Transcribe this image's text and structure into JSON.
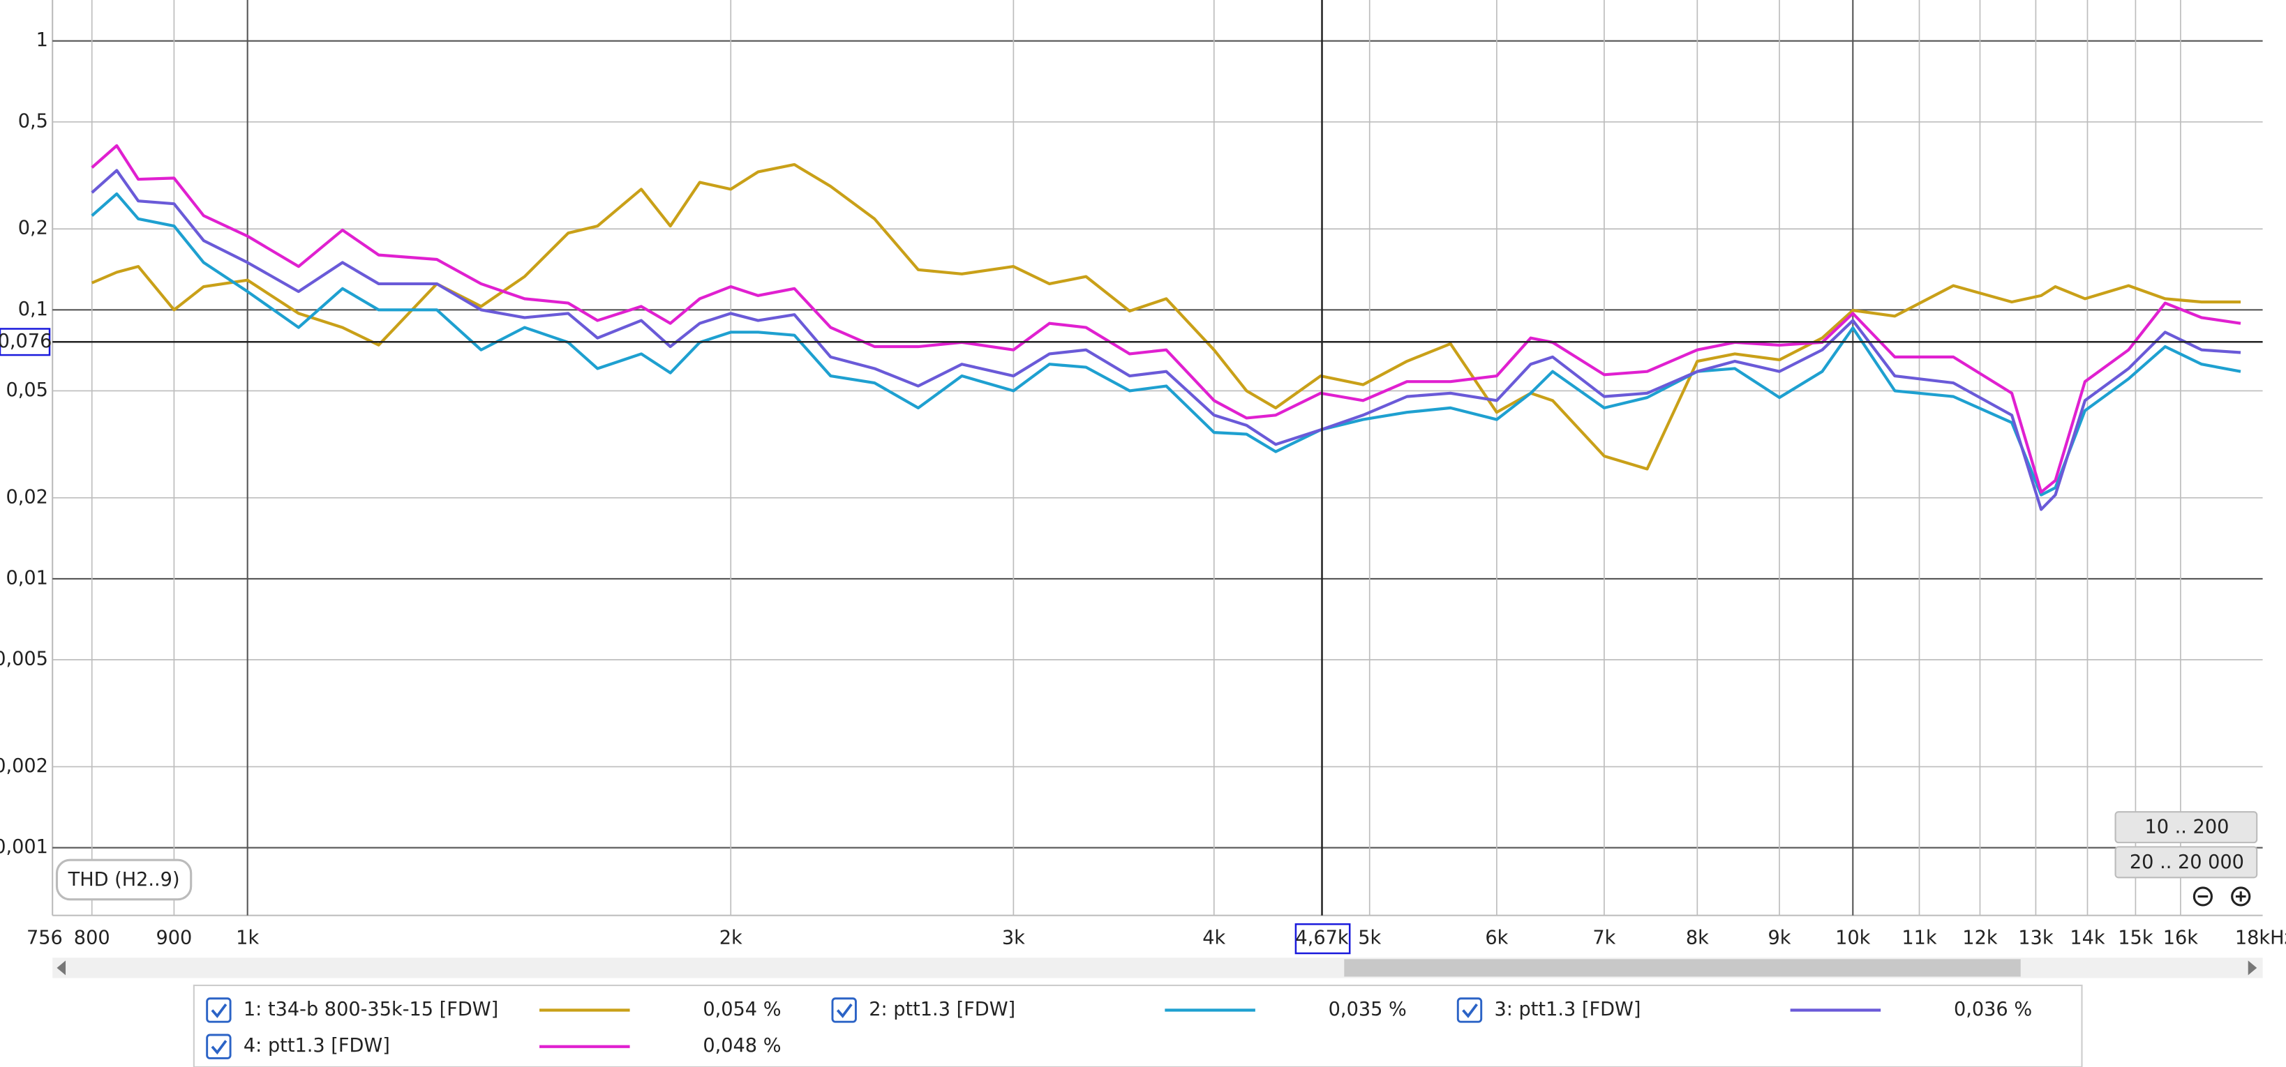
{
  "chart_data": {
    "type": "line",
    "plot_label": "THD (H2..9)",
    "log_x": true,
    "log_y": true,
    "grid": true,
    "xlim": [
      756,
      18000
    ],
    "ylim": [
      0.00056,
      1.42
    ],
    "xticks": [
      756,
      800,
      900,
      {
        "value": 1000,
        "label": "1k"
      },
      {
        "value": 2000,
        "label": "2k"
      },
      {
        "value": 3000,
        "label": "3k"
      },
      {
        "value": 4000,
        "label": "4k"
      },
      {
        "value": 5000,
        "label": "5k"
      },
      {
        "value": 6000,
        "label": "6k"
      },
      {
        "value": 7000,
        "label": "7k"
      },
      {
        "value": 8000,
        "label": "8k"
      },
      {
        "value": 9000,
        "label": "9k"
      },
      {
        "value": 10000,
        "label": "10k"
      },
      {
        "value": 11000,
        "label": "11k"
      },
      {
        "value": 12000,
        "label": "12k"
      },
      {
        "value": 13000,
        "label": "13k"
      },
      {
        "value": 14000,
        "label": "14k"
      },
      {
        "value": 15000,
        "label": "15k"
      },
      {
        "value": 16000,
        "label": "16k"
      },
      {
        "value": 18000,
        "label": "18kHz"
      }
    ],
    "yticks": [
      1,
      {
        "value": 0.5,
        "label": "0,5"
      },
      {
        "value": 0.2,
        "label": "0,2"
      },
      {
        "value": 0.1,
        "label": "0,1"
      },
      {
        "value": 0.05,
        "label": "0,05"
      },
      {
        "value": 0.02,
        "label": "0,02"
      },
      {
        "value": 0.01,
        "label": "0,01"
      },
      {
        "value": 0.005,
        "label": "0,005"
      },
      {
        "value": 0.002,
        "label": "0,002"
      },
      {
        "value": 0.001,
        "label": "0,001"
      }
    ],
    "cursor": {
      "x": {
        "value": 4670,
        "label": "4,67k"
      },
      "y": {
        "value": 0.076,
        "label": "0,076"
      }
    },
    "x": [
      800,
      829,
      855,
      900,
      939,
      1000,
      1076,
      1146,
      1207,
      1312,
      1398,
      1488,
      1584,
      1652,
      1759,
      1834,
      1913,
      2000,
      2080,
      2191,
      2308,
      2458,
      2617,
      2786,
      3000,
      3159,
      3329,
      3544,
      3735,
      4000,
      4191,
      4370,
      4661,
      4953,
      5275,
      5615,
      6000,
      6300,
      6501,
      7000,
      7445,
      8000,
      8443,
      9000,
      9570,
      10000,
      10620,
      11550,
      12560,
      13100,
      13370,
      13950,
      14850,
      15650,
      16490,
      17440
    ],
    "series": [
      {
        "name": "1: t34-b 800-35k-15 [FDW]",
        "color": "#c9a018",
        "cursor_label": "0,054 %",
        "values": [
          0.126,
          0.138,
          0.145,
          0.1,
          0.122,
          0.129,
          0.097,
          0.086,
          0.074,
          0.125,
          0.103,
          0.133,
          0.193,
          0.205,
          0.281,
          0.205,
          0.298,
          0.281,
          0.326,
          0.347,
          0.288,
          0.218,
          0.141,
          0.136,
          0.145,
          0.125,
          0.133,
          0.099,
          0.11,
          0.071,
          0.05,
          0.0432,
          0.0568,
          0.0527,
          0.0644,
          0.0748,
          0.0416,
          0.049,
          0.046,
          0.0286,
          0.0256,
          0.0644,
          0.0686,
          0.0652,
          0.0786,
          0.0996,
          0.0948,
          0.123,
          0.107,
          0.113,
          0.122,
          0.11,
          0.123,
          0.11,
          0.107,
          0.107
        ]
      },
      {
        "name": "2: ptt1.3 [FDW]",
        "color": "#1ea0d0",
        "cursor_label": "0,035 %",
        "values": [
          0.224,
          0.27,
          0.218,
          0.205,
          0.15,
          0.117,
          0.086,
          0.12,
          0.1,
          0.1,
          0.071,
          0.086,
          0.0757,
          0.0605,
          0.0686,
          0.0583,
          0.0757,
          0.0826,
          0.0826,
          0.0805,
          0.0568,
          0.0535,
          0.0432,
          0.0568,
          0.05,
          0.0628,
          0.0612,
          0.05,
          0.0521,
          0.035,
          0.0345,
          0.0297,
          0.0358,
          0.0391,
          0.0416,
          0.0432,
          0.0391,
          0.049,
          0.059,
          0.0432,
          0.0472,
          0.059,
          0.0605,
          0.0472,
          0.059,
          0.0857,
          0.05,
          0.0476,
          0.0381,
          0.0205,
          0.0218,
          0.0422,
          0.0554,
          0.073,
          0.0628,
          0.059
        ]
      },
      {
        "name": "3: ptt1.3 [FDW]",
        "color": "#6a5ad8",
        "cursor_label": "0,036 %",
        "values": [
          0.273,
          0.33,
          0.254,
          0.248,
          0.181,
          0.15,
          0.117,
          0.15,
          0.125,
          0.125,
          0.1,
          0.0936,
          0.097,
          0.0786,
          0.0913,
          0.073,
          0.0891,
          0.097,
          0.0913,
          0.096,
          0.0668,
          0.0605,
          0.0521,
          0.0628,
          0.0568,
          0.0686,
          0.071,
          0.0568,
          0.059,
          0.0406,
          0.0372,
          0.0316,
          0.0358,
          0.0406,
          0.0476,
          0.049,
          0.046,
          0.0628,
          0.0668,
          0.0476,
          0.049,
          0.059,
          0.0644,
          0.059,
          0.071,
          0.0913,
          0.0568,
          0.0535,
          0.0406,
          0.0181,
          0.0205,
          0.046,
          0.0605,
          0.0826,
          0.071,
          0.0694
        ]
      },
      {
        "name": "4: ptt1.3 [FDW]",
        "color": "#e020d0",
        "cursor_label": "0,048 %",
        "values": [
          0.338,
          0.408,
          0.306,
          0.309,
          0.224,
          0.188,
          0.145,
          0.198,
          0.16,
          0.154,
          0.125,
          0.11,
          0.106,
          0.0913,
          0.103,
          0.0891,
          0.11,
          0.122,
          0.113,
          0.12,
          0.086,
          0.073,
          0.073,
          0.0757,
          0.071,
          0.0891,
          0.086,
          0.0686,
          0.071,
          0.046,
          0.0396,
          0.0406,
          0.049,
          0.046,
          0.0541,
          0.0541,
          0.0568,
          0.0786,
          0.0757,
          0.0574,
          0.059,
          0.071,
          0.0757,
          0.0739,
          0.0757,
          0.097,
          0.0668,
          0.0668,
          0.049,
          0.021,
          0.0232,
          0.0541,
          0.071,
          0.106,
          0.0936,
          0.0891
        ]
      }
    ]
  },
  "controls": {
    "buttons": [
      "10 .. 200",
      "20 .. 20 000"
    ]
  }
}
